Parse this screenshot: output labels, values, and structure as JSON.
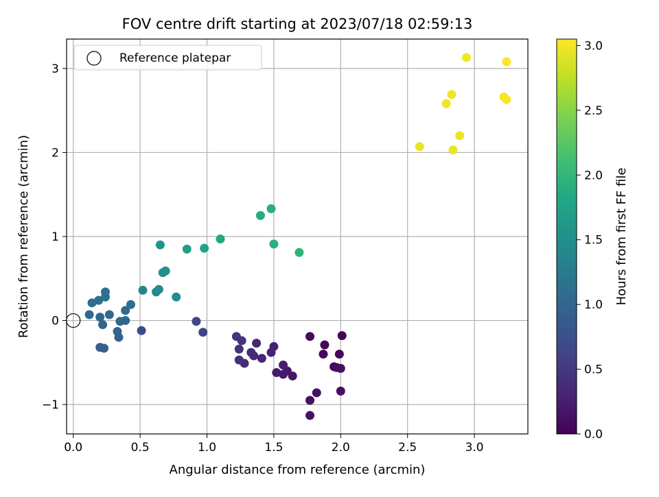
{
  "chart_data": {
    "type": "scatter",
    "title": "FOV centre drift starting at 2023/07/18 02:59:13",
    "xlabel": "Angular distance from reference (arcmin)",
    "ylabel": "Rotation from reference (arcmin)",
    "xlim": [
      -0.05,
      3.4
    ],
    "ylim": [
      -1.35,
      3.35
    ],
    "xticks": [
      0.0,
      0.5,
      1.0,
      1.5,
      2.0,
      2.5,
      3.0
    ],
    "xtick_labels": [
      "0.0",
      "0.5",
      "1.0",
      "1.5",
      "2.0",
      "2.5",
      "3.0"
    ],
    "yticks": [
      -1,
      0,
      1,
      2,
      3
    ],
    "ytick_labels": [
      "−1",
      "0",
      "1",
      "2",
      "3"
    ],
    "grid": true,
    "legend": {
      "location": "upper-left",
      "entries": [
        "Reference platepar"
      ]
    },
    "reference_point": {
      "x": 0.0,
      "y": 0.0,
      "marker": "hollow-circle"
    },
    "colorbar": {
      "label": "Hours from first FF file",
      "colormap": "viridis",
      "range": [
        0.0,
        3.05
      ],
      "ticks": [
        0.0,
        0.5,
        1.0,
        1.5,
        2.0,
        2.5,
        3.0
      ],
      "tick_labels": [
        "0.0",
        "0.5",
        "1.0",
        "1.5",
        "2.0",
        "2.5",
        "3.0"
      ]
    },
    "points": [
      {
        "x": 1.88,
        "y": -0.29,
        "c": 0.03
      },
      {
        "x": 2.01,
        "y": -0.18,
        "c": 0.05
      },
      {
        "x": 1.99,
        "y": -0.4,
        "c": 0.06
      },
      {
        "x": 1.87,
        "y": -0.4,
        "c": 0.07
      },
      {
        "x": 1.77,
        "y": -0.19,
        "c": 0.08
      },
      {
        "x": 1.95,
        "y": -0.55,
        "c": 0.09
      },
      {
        "x": 1.97,
        "y": -0.56,
        "c": 0.1
      },
      {
        "x": 2.0,
        "y": -0.57,
        "c": 0.11
      },
      {
        "x": 2.0,
        "y": -0.84,
        "c": 0.12
      },
      {
        "x": 1.82,
        "y": -0.86,
        "c": 0.13
      },
      {
        "x": 1.77,
        "y": -0.95,
        "c": 0.14
      },
      {
        "x": 1.77,
        "y": -1.13,
        "c": 0.15
      },
      {
        "x": 1.64,
        "y": -0.66,
        "c": 0.17
      },
      {
        "x": 1.6,
        "y": -0.6,
        "c": 0.19
      },
      {
        "x": 1.57,
        "y": -0.64,
        "c": 0.21
      },
      {
        "x": 1.52,
        "y": -0.62,
        "c": 0.23
      },
      {
        "x": 1.57,
        "y": -0.53,
        "c": 0.25
      },
      {
        "x": 1.5,
        "y": -0.31,
        "c": 0.27
      },
      {
        "x": 1.48,
        "y": -0.38,
        "c": 0.29
      },
      {
        "x": 1.41,
        "y": -0.45,
        "c": 0.31
      },
      {
        "x": 1.37,
        "y": -0.27,
        "c": 0.33
      },
      {
        "x": 1.35,
        "y": -0.42,
        "c": 0.35
      },
      {
        "x": 1.33,
        "y": -0.38,
        "c": 0.37
      },
      {
        "x": 1.28,
        "y": -0.51,
        "c": 0.39
      },
      {
        "x": 1.24,
        "y": -0.47,
        "c": 0.41
      },
      {
        "x": 1.24,
        "y": -0.34,
        "c": 0.43
      },
      {
        "x": 1.26,
        "y": -0.24,
        "c": 0.45
      },
      {
        "x": 1.22,
        "y": -0.19,
        "c": 0.47
      },
      {
        "x": 0.97,
        "y": -0.14,
        "c": 0.6
      },
      {
        "x": 0.92,
        "y": -0.01,
        "c": 0.64
      },
      {
        "x": 0.51,
        "y": -0.12,
        "c": 0.7
      },
      {
        "x": 0.2,
        "y": -0.32,
        "c": 0.9
      },
      {
        "x": 0.23,
        "y": -0.33,
        "c": 0.92
      },
      {
        "x": 0.34,
        "y": -0.2,
        "c": 0.95
      },
      {
        "x": 0.33,
        "y": -0.13,
        "c": 0.97
      },
      {
        "x": 0.22,
        "y": -0.05,
        "c": 0.99
      },
      {
        "x": 0.35,
        "y": -0.01,
        "c": 1.0
      },
      {
        "x": 0.39,
        "y": 0.0,
        "c": 1.01
      },
      {
        "x": 0.2,
        "y": 0.04,
        "c": 1.02
      },
      {
        "x": 0.27,
        "y": 0.07,
        "c": 1.03
      },
      {
        "x": 0.12,
        "y": 0.07,
        "c": 1.04
      },
      {
        "x": 0.39,
        "y": 0.12,
        "c": 1.06
      },
      {
        "x": 0.43,
        "y": 0.19,
        "c": 1.08
      },
      {
        "x": 0.14,
        "y": 0.21,
        "c": 1.1
      },
      {
        "x": 0.19,
        "y": 0.24,
        "c": 1.11
      },
      {
        "x": 0.24,
        "y": 0.28,
        "c": 1.12
      },
      {
        "x": 0.24,
        "y": 0.34,
        "c": 1.13
      },
      {
        "x": 0.52,
        "y": 0.36,
        "c": 1.4
      },
      {
        "x": 0.62,
        "y": 0.34,
        "c": 1.42
      },
      {
        "x": 0.64,
        "y": 0.37,
        "c": 1.44
      },
      {
        "x": 0.77,
        "y": 0.28,
        "c": 1.46
      },
      {
        "x": 0.67,
        "y": 0.57,
        "c": 1.5
      },
      {
        "x": 0.69,
        "y": 0.59,
        "c": 1.52
      },
      {
        "x": 0.65,
        "y": 0.9,
        "c": 1.58
      },
      {
        "x": 0.85,
        "y": 0.85,
        "c": 1.72
      },
      {
        "x": 0.98,
        "y": 0.86,
        "c": 1.76
      },
      {
        "x": 1.1,
        "y": 0.97,
        "c": 1.8
      },
      {
        "x": 1.4,
        "y": 1.25,
        "c": 1.88
      },
      {
        "x": 1.48,
        "y": 1.33,
        "c": 1.9
      },
      {
        "x": 1.5,
        "y": 0.91,
        "c": 1.92
      },
      {
        "x": 1.69,
        "y": 0.81,
        "c": 1.96
      },
      {
        "x": 2.59,
        "y": 2.07,
        "c": 2.95
      },
      {
        "x": 2.84,
        "y": 2.03,
        "c": 2.96
      },
      {
        "x": 2.89,
        "y": 2.2,
        "c": 2.97
      },
      {
        "x": 2.79,
        "y": 2.58,
        "c": 2.98
      },
      {
        "x": 2.83,
        "y": 2.69,
        "c": 2.99
      },
      {
        "x": 2.94,
        "y": 3.13,
        "c": 3.0
      },
      {
        "x": 3.22,
        "y": 2.66,
        "c": 3.01
      },
      {
        "x": 3.24,
        "y": 2.63,
        "c": 3.02
      },
      {
        "x": 3.24,
        "y": 3.08,
        "c": 3.04
      }
    ]
  }
}
